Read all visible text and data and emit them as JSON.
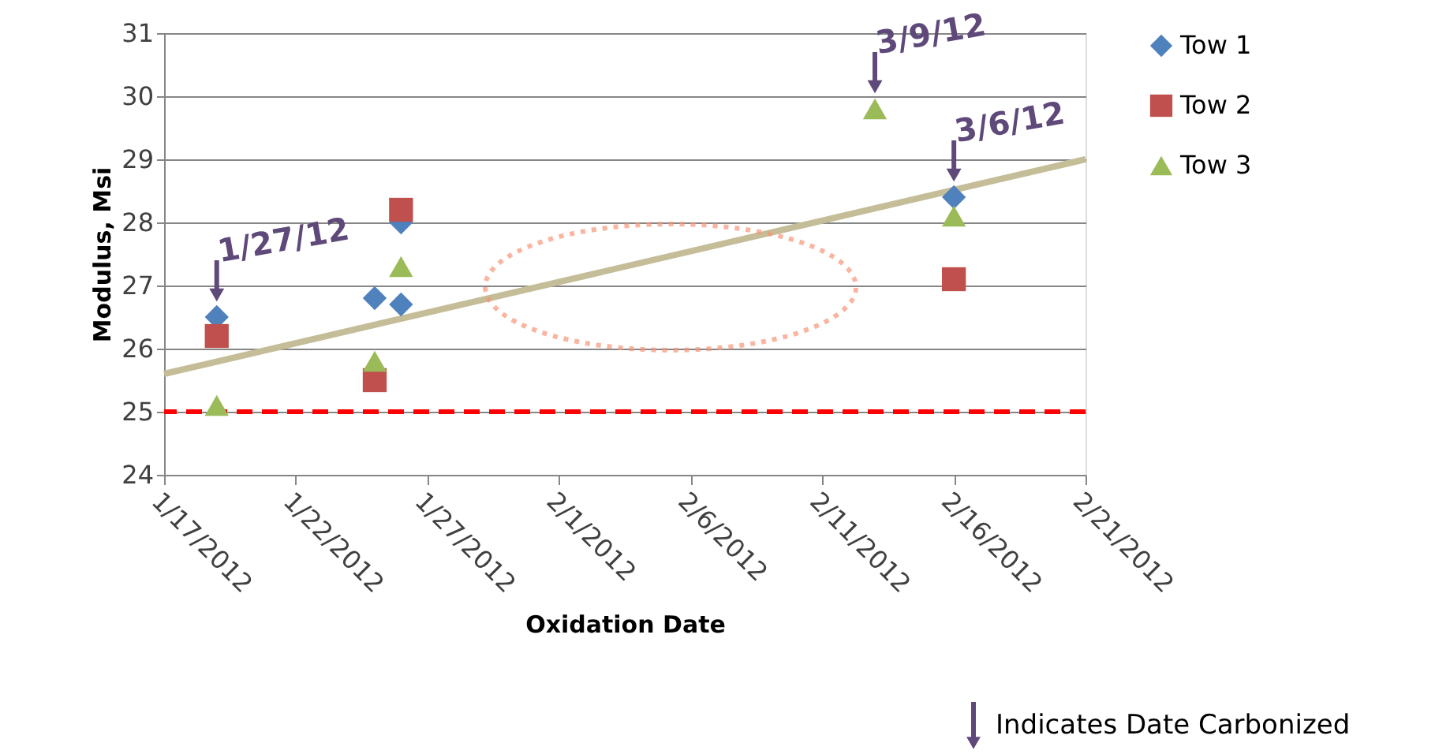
{
  "chart_data": {
    "type": "scatter",
    "xlabel": "Oxidation Date",
    "ylabel": "Modulus, Msi",
    "xlim": [
      "2012-01-17",
      "2012-02-21"
    ],
    "xticks": [
      {
        "value": "2012-01-17",
        "label": "1/17/2012"
      },
      {
        "value": "2012-01-22",
        "label": "1/22/2012"
      },
      {
        "value": "2012-01-27",
        "label": "1/27/2012"
      },
      {
        "value": "2012-02-01",
        "label": "2/1/2012"
      },
      {
        "value": "2012-02-06",
        "label": "2/6/2012"
      },
      {
        "value": "2012-02-11",
        "label": "2/11/2012"
      },
      {
        "value": "2012-02-16",
        "label": "2/16/2012"
      },
      {
        "value": "2012-02-21",
        "label": "2/21/2012"
      }
    ],
    "ylim": [
      24,
      31
    ],
    "yticks": [
      24,
      25,
      26,
      27,
      28,
      29,
      30,
      31
    ],
    "grid": "y",
    "legend": "right",
    "series": [
      {
        "name": "Tow 1",
        "color": "#4f81bd",
        "marker": "diamond",
        "x": [
          "2012-01-19",
          "2012-01-25",
          "2012-01-26",
          "2012-01-26",
          "2012-02-16"
        ],
        "values": [
          26.5,
          26.8,
          26.7,
          28.0,
          28.4
        ]
      },
      {
        "name": "Tow 2",
        "color": "#c0504d",
        "marker": "square",
        "x": [
          "2012-01-19",
          "2012-01-25",
          "2012-01-26",
          "2012-02-16"
        ],
        "values": [
          26.2,
          25.5,
          28.2,
          27.1
        ]
      },
      {
        "name": "Tow 3",
        "color": "#9bbb59",
        "marker": "triangle",
        "x": [
          "2012-01-19",
          "2012-01-25",
          "2012-01-26",
          "2012-02-13",
          "2012-02-16"
        ],
        "values": [
          25.1,
          25.8,
          27.3,
          29.8,
          28.1
        ]
      },
      {
        "type": "line",
        "color": "#c4bd97",
        "x": [
          "2012-01-17",
          "2012-02-21"
        ],
        "values": [
          25.6,
          29.0
        ]
      }
    ],
    "ref_lines": [
      {
        "axis": "y",
        "value": 25,
        "color": "#ff0000",
        "line_style": "dashed"
      }
    ],
    "annotations": [
      {
        "text": "1/27/12",
        "x": "2012-01-19",
        "y": 26.5
      },
      {
        "text": "3/9/12",
        "x": "2012-02-13",
        "y": 29.8
      },
      {
        "text": "3/6/12",
        "x": "2012-02-16",
        "y": 28.4
      },
      "Indicates Date Carbonized"
    ]
  }
}
